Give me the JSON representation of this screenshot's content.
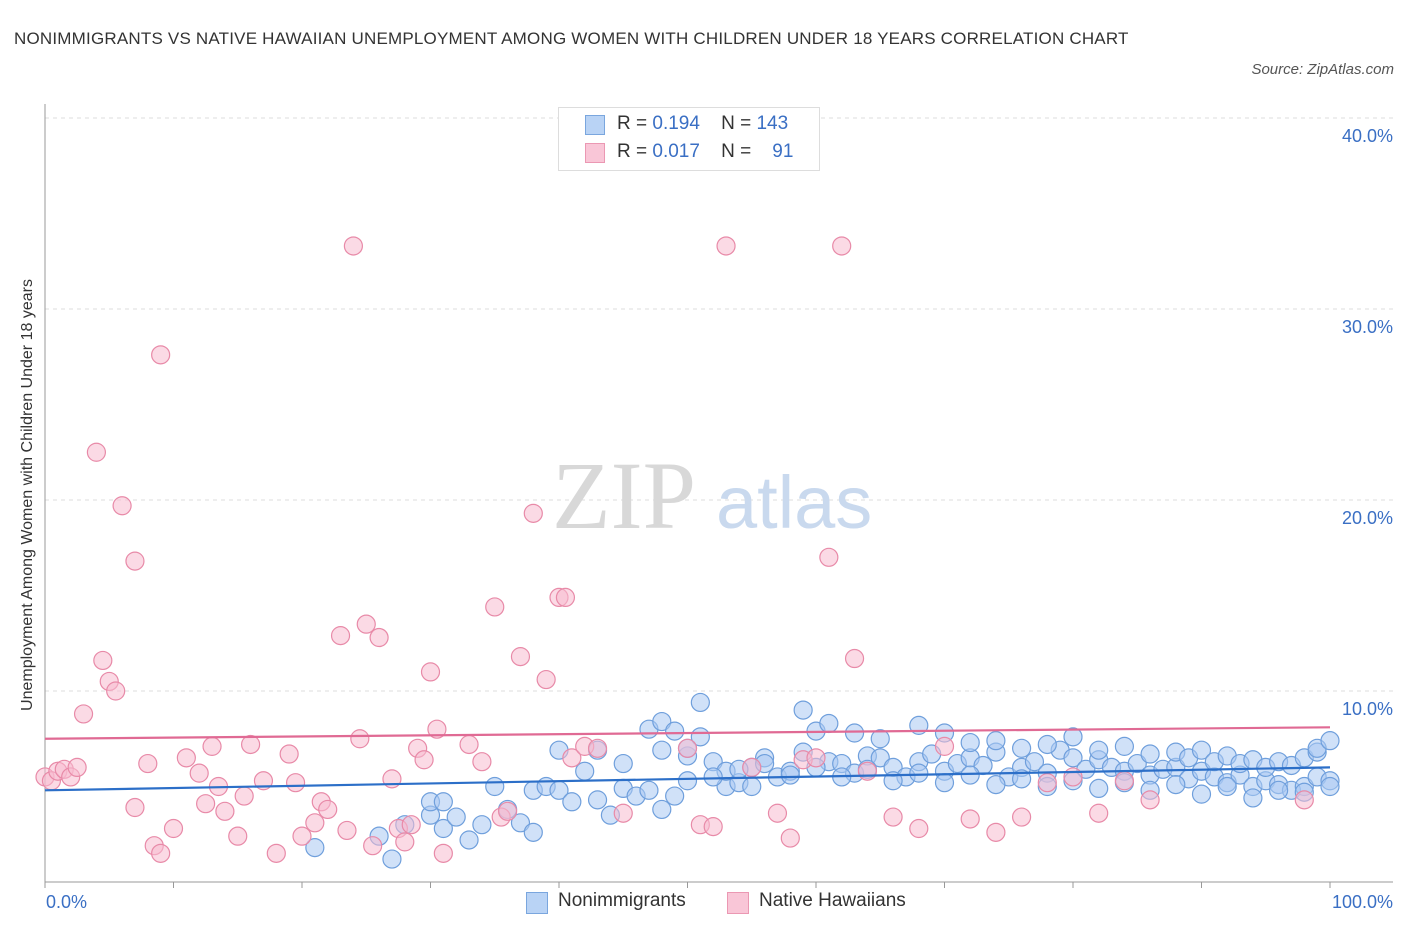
{
  "chart_data": {
    "type": "scatter",
    "title": "NONIMMIGRANTS VS NATIVE HAWAIIAN UNEMPLOYMENT AMONG WOMEN WITH CHILDREN UNDER 18 YEARS CORRELATION CHART",
    "source": "Source: ZipAtlas.com",
    "xlabel": "",
    "ylabel": "Unemployment Among Women with Children Under 18 years",
    "xlim": [
      0,
      100
    ],
    "ylim": [
      0,
      40
    ],
    "x_tick_labels": {
      "min": "0.0%",
      "max": "100.0%"
    },
    "y_ticks": [
      10,
      20,
      30,
      40
    ],
    "y_tick_labels": [
      "10.0%",
      "20.0%",
      "30.0%",
      "40.0%"
    ],
    "grid": "horizontal dashed",
    "watermark": {
      "part1": "ZIP",
      "part2": "atlas"
    },
    "legend_stats": [
      {
        "r_label": "R =",
        "r_value": "0.194",
        "n_label": "N =",
        "n_value": "143"
      },
      {
        "r_label": "R =",
        "r_value": "0.017",
        "n_label": "N =",
        "n_value": "91"
      }
    ],
    "series": [
      {
        "name": "Nonimmigrants",
        "color": "#a9c8f2",
        "stroke": "#6f9fdc",
        "trend_color": "#2c6fc8",
        "trend": [
          [
            0,
            4.8
          ],
          [
            100,
            6.0
          ]
        ],
        "points": [
          [
            21,
            1.8
          ],
          [
            26,
            2.4
          ],
          [
            27,
            1.2
          ],
          [
            28,
            3.0
          ],
          [
            30,
            3.5
          ],
          [
            30,
            4.2
          ],
          [
            31,
            4.2
          ],
          [
            31,
            2.8
          ],
          [
            32,
            3.4
          ],
          [
            33,
            2.2
          ],
          [
            34,
            3.0
          ],
          [
            35,
            5.0
          ],
          [
            36,
            3.8
          ],
          [
            37,
            3.1
          ],
          [
            38,
            2.6
          ],
          [
            38,
            4.8
          ],
          [
            39,
            5.0
          ],
          [
            40,
            4.8
          ],
          [
            40,
            6.9
          ],
          [
            41,
            4.2
          ],
          [
            42,
            5.8
          ],
          [
            43,
            6.9
          ],
          [
            44,
            3.5
          ],
          [
            45,
            4.9
          ],
          [
            45,
            6.2
          ],
          [
            46,
            4.5
          ],
          [
            47,
            4.8
          ],
          [
            48,
            3.8
          ],
          [
            48,
            6.9
          ],
          [
            49,
            4.5
          ],
          [
            50,
            6.6
          ],
          [
            50,
            7.0
          ],
          [
            51,
            7.6
          ],
          [
            52,
            6.3
          ],
          [
            53,
            5.0
          ],
          [
            53,
            5.8
          ],
          [
            54,
            5.2
          ],
          [
            55,
            6.0
          ],
          [
            55,
            5.0
          ],
          [
            56,
            6.5
          ],
          [
            57,
            5.5
          ],
          [
            58,
            5.8
          ],
          [
            59,
            6.8
          ],
          [
            60,
            7.9
          ],
          [
            61,
            6.3
          ],
          [
            62,
            6.2
          ],
          [
            63,
            5.7
          ],
          [
            64,
            6.6
          ],
          [
            65,
            6.5
          ],
          [
            66,
            6.0
          ],
          [
            67,
            5.5
          ],
          [
            68,
            6.3
          ],
          [
            69,
            6.7
          ],
          [
            70,
            5.8
          ],
          [
            71,
            6.2
          ],
          [
            72,
            6.5
          ],
          [
            73,
            6.1
          ],
          [
            74,
            6.8
          ],
          [
            75,
            5.5
          ],
          [
            76,
            6.0
          ],
          [
            77,
            6.3
          ],
          [
            78,
            5.7
          ],
          [
            79,
            6.9
          ],
          [
            80,
            6.5
          ],
          [
            81,
            5.9
          ],
          [
            82,
            6.4
          ],
          [
            83,
            6.0
          ],
          [
            84,
            5.8
          ],
          [
            85,
            6.2
          ],
          [
            86,
            5.6
          ],
          [
            87,
            5.9
          ],
          [
            88,
            6.0
          ],
          [
            89,
            5.4
          ],
          [
            90,
            5.8
          ],
          [
            91,
            5.5
          ],
          [
            92,
            5.2
          ],
          [
            93,
            5.6
          ],
          [
            94,
            5.0
          ],
          [
            95,
            5.3
          ],
          [
            96,
            5.1
          ],
          [
            97,
            4.8
          ],
          [
            98,
            5.0
          ],
          [
            99,
            5.5
          ],
          [
            100,
            5.3
          ],
          [
            47,
            8.0
          ],
          [
            48,
            8.4
          ],
          [
            49,
            7.9
          ],
          [
            51,
            9.4
          ],
          [
            59,
            9.0
          ],
          [
            61,
            8.3
          ],
          [
            63,
            7.8
          ],
          [
            65,
            7.5
          ],
          [
            68,
            8.2
          ],
          [
            70,
            7.8
          ],
          [
            72,
            7.3
          ],
          [
            74,
            7.4
          ],
          [
            76,
            7.0
          ],
          [
            78,
            7.2
          ],
          [
            80,
            7.6
          ],
          [
            82,
            6.9
          ],
          [
            84,
            7.1
          ],
          [
            86,
            6.7
          ],
          [
            88,
            6.8
          ],
          [
            89,
            6.5
          ],
          [
            90,
            6.9
          ],
          [
            91,
            6.3
          ],
          [
            92,
            6.6
          ],
          [
            93,
            6.2
          ],
          [
            94,
            6.4
          ],
          [
            95,
            6.0
          ],
          [
            96,
            6.3
          ],
          [
            97,
            6.1
          ],
          [
            98,
            6.5
          ],
          [
            99,
            6.8
          ],
          [
            99,
            7.0
          ],
          [
            100,
            7.4
          ],
          [
            50,
            5.3
          ],
          [
            52,
            5.5
          ],
          [
            54,
            5.9
          ],
          [
            56,
            6.2
          ],
          [
            58,
            5.6
          ],
          [
            60,
            6.0
          ],
          [
            62,
            5.5
          ],
          [
            64,
            5.9
          ],
          [
            66,
            5.3
          ],
          [
            68,
            5.7
          ],
          [
            70,
            5.2
          ],
          [
            72,
            5.6
          ],
          [
            74,
            5.1
          ],
          [
            76,
            5.4
          ],
          [
            78,
            5.0
          ],
          [
            80,
            5.3
          ],
          [
            82,
            4.9
          ],
          [
            84,
            5.2
          ],
          [
            86,
            4.8
          ],
          [
            88,
            5.1
          ],
          [
            90,
            4.6
          ],
          [
            92,
            5.0
          ],
          [
            94,
            4.4
          ],
          [
            96,
            4.8
          ],
          [
            98,
            4.7
          ],
          [
            100,
            5.0
          ],
          [
            43,
            4.3
          ]
        ]
      },
      {
        "name": "Native Hawaiians",
        "color": "#f7bcd0",
        "stroke": "#e88aa8",
        "trend_color": "#e06a94",
        "trend": [
          [
            0,
            7.5
          ],
          [
            100,
            8.1
          ]
        ],
        "points": [
          [
            0,
            5.5
          ],
          [
            0.5,
            5.3
          ],
          [
            1,
            5.8
          ],
          [
            1.5,
            5.9
          ],
          [
            2,
            5.5
          ],
          [
            2.5,
            6.0
          ],
          [
            3,
            8.8
          ],
          [
            4,
            22.5
          ],
          [
            4.5,
            11.6
          ],
          [
            5,
            10.5
          ],
          [
            5.5,
            10.0
          ],
          [
            6,
            19.7
          ],
          [
            7,
            16.8
          ],
          [
            7,
            3.9
          ],
          [
            8,
            6.2
          ],
          [
            8.5,
            1.9
          ],
          [
            9,
            1.5
          ],
          [
            9,
            27.6
          ],
          [
            10,
            2.8
          ],
          [
            11,
            6.5
          ],
          [
            12,
            5.7
          ],
          [
            12.5,
            4.1
          ],
          [
            13,
            7.1
          ],
          [
            13.5,
            5.0
          ],
          [
            14,
            3.7
          ],
          [
            15,
            2.4
          ],
          [
            15.5,
            4.5
          ],
          [
            16,
            7.2
          ],
          [
            17,
            5.3
          ],
          [
            18,
            1.5
          ],
          [
            19,
            6.7
          ],
          [
            19.5,
            5.2
          ],
          [
            20,
            2.4
          ],
          [
            21,
            3.1
          ],
          [
            21.5,
            4.2
          ],
          [
            22,
            3.8
          ],
          [
            23,
            12.9
          ],
          [
            23.5,
            2.7
          ],
          [
            24,
            33.3
          ],
          [
            24.5,
            7.5
          ],
          [
            25,
            13.5
          ],
          [
            25.5,
            1.9
          ],
          [
            26,
            12.8
          ],
          [
            27,
            5.4
          ],
          [
            27.5,
            2.8
          ],
          [
            28,
            2.1
          ],
          [
            28.5,
            3.0
          ],
          [
            29,
            7.0
          ],
          [
            29.5,
            6.4
          ],
          [
            30,
            11.0
          ],
          [
            30.5,
            8.0
          ],
          [
            31,
            1.5
          ],
          [
            33,
            7.2
          ],
          [
            34,
            6.3
          ],
          [
            35,
            14.4
          ],
          [
            35.5,
            3.4
          ],
          [
            36,
            3.7
          ],
          [
            37,
            11.8
          ],
          [
            38,
            19.3
          ],
          [
            39,
            10.6
          ],
          [
            40,
            14.9
          ],
          [
            40.5,
            14.9
          ],
          [
            41,
            6.5
          ],
          [
            42,
            7.1
          ],
          [
            43,
            7.0
          ],
          [
            45,
            3.6
          ],
          [
            50,
            7.0
          ],
          [
            51,
            3.0
          ],
          [
            52,
            2.9
          ],
          [
            53,
            33.3
          ],
          [
            55,
            6.0
          ],
          [
            57,
            3.6
          ],
          [
            58,
            2.3
          ],
          [
            59,
            6.4
          ],
          [
            60,
            6.5
          ],
          [
            61,
            17.0
          ],
          [
            62,
            33.3
          ],
          [
            63,
            11.7
          ],
          [
            64,
            5.8
          ],
          [
            66,
            3.4
          ],
          [
            68,
            2.8
          ],
          [
            70,
            7.1
          ],
          [
            72,
            3.3
          ],
          [
            74,
            2.6
          ],
          [
            76,
            3.4
          ],
          [
            78,
            5.2
          ],
          [
            80,
            5.5
          ],
          [
            82,
            3.6
          ],
          [
            84,
            5.3
          ],
          [
            86,
            4.3
          ],
          [
            98,
            4.3
          ]
        ]
      }
    ]
  }
}
